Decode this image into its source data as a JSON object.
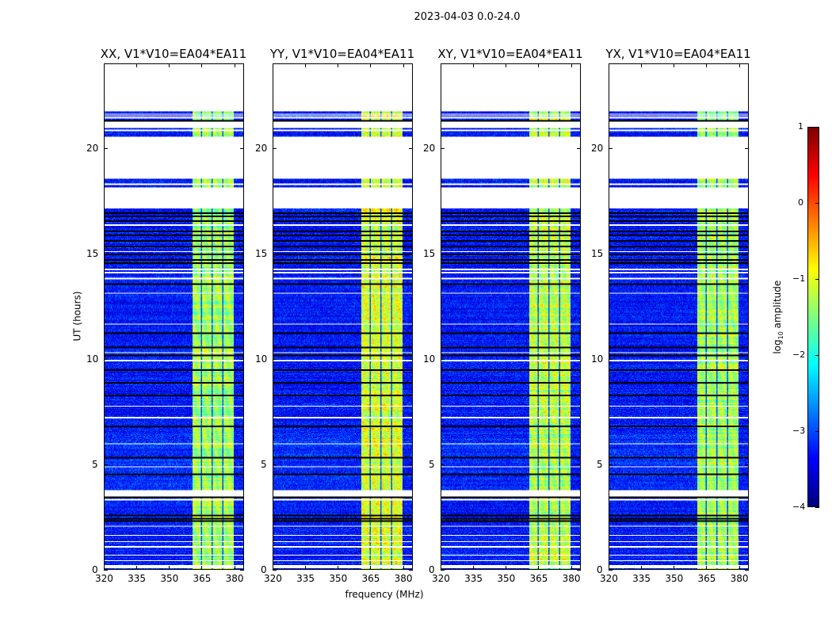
{
  "suptitle": "2023-04-03 0.0-24.0",
  "colors": {
    "flagged": "#ffffff",
    "zeroed": "#000000"
  },
  "chart_data": {
    "type": "heatmap",
    "xlabel": "frequency (MHz)",
    "ylabel": "UT (hours)",
    "xlim": [
      320,
      384.5
    ],
    "ylim": [
      0,
      24
    ],
    "xticks": [
      320,
      335,
      350,
      365,
      380
    ],
    "yticks": [
      0,
      5,
      10,
      15,
      20
    ],
    "colormap": "jet",
    "colorbar": {
      "label_main": "log",
      "label_sub": "10",
      "label_rest": " amplitude",
      "range": [
        -4,
        1
      ],
      "ticks": [
        1,
        0,
        -1,
        -2,
        -3,
        -4
      ],
      "tick_labels": [
        "1",
        "0",
        "−1",
        "−2",
        "−3",
        "−4"
      ]
    },
    "band_mhz": [
      361,
      380
    ],
    "band_dark_channels_mhz": [
      365,
      370,
      375
    ],
    "background_level": -3.3,
    "flagged_hours": [
      [
        21.75,
        24
      ],
      [
        20.95,
        21.25
      ],
      [
        18.55,
        20.55
      ],
      [
        17.15,
        18.15
      ],
      [
        3.45,
        3.75
      ],
      [
        0.05,
        0.2
      ]
    ],
    "thin_white_hours": [
      21.45,
      21.55,
      21.62,
      20.85,
      18.3,
      16.35,
      15.1,
      14.25,
      14.1,
      13.8,
      13.1,
      11.65,
      10.3,
      9.9,
      7.75,
      7.2,
      5.95,
      4.85,
      3.3,
      2.05,
      1.6,
      1.3,
      1.05,
      0.65,
      0.4
    ],
    "black_hours": [
      21.3,
      16.9,
      16.75,
      16.55,
      16.05,
      15.85,
      15.6,
      15.35,
      14.95,
      14.7,
      14.55,
      13.55,
      11.2,
      10.55,
      10.15,
      9.45,
      8.85,
      8.25,
      6.8,
      5.3,
      4.5,
      3.4,
      2.55,
      2.4,
      2.3
    ],
    "panels": [
      {
        "title": "XX, V1*V10=EA04*EA11",
        "band_level": -1.35,
        "seed": 11
      },
      {
        "title": "YY, V1*V10=EA04*EA11",
        "band_level": -1.05,
        "seed": 23
      },
      {
        "title": "XY, V1*V10=EA04*EA11",
        "band_level": -1.2,
        "seed": 37
      },
      {
        "title": "YX, V1*V10=EA04*EA11",
        "band_level": -1.3,
        "seed": 51
      }
    ]
  }
}
